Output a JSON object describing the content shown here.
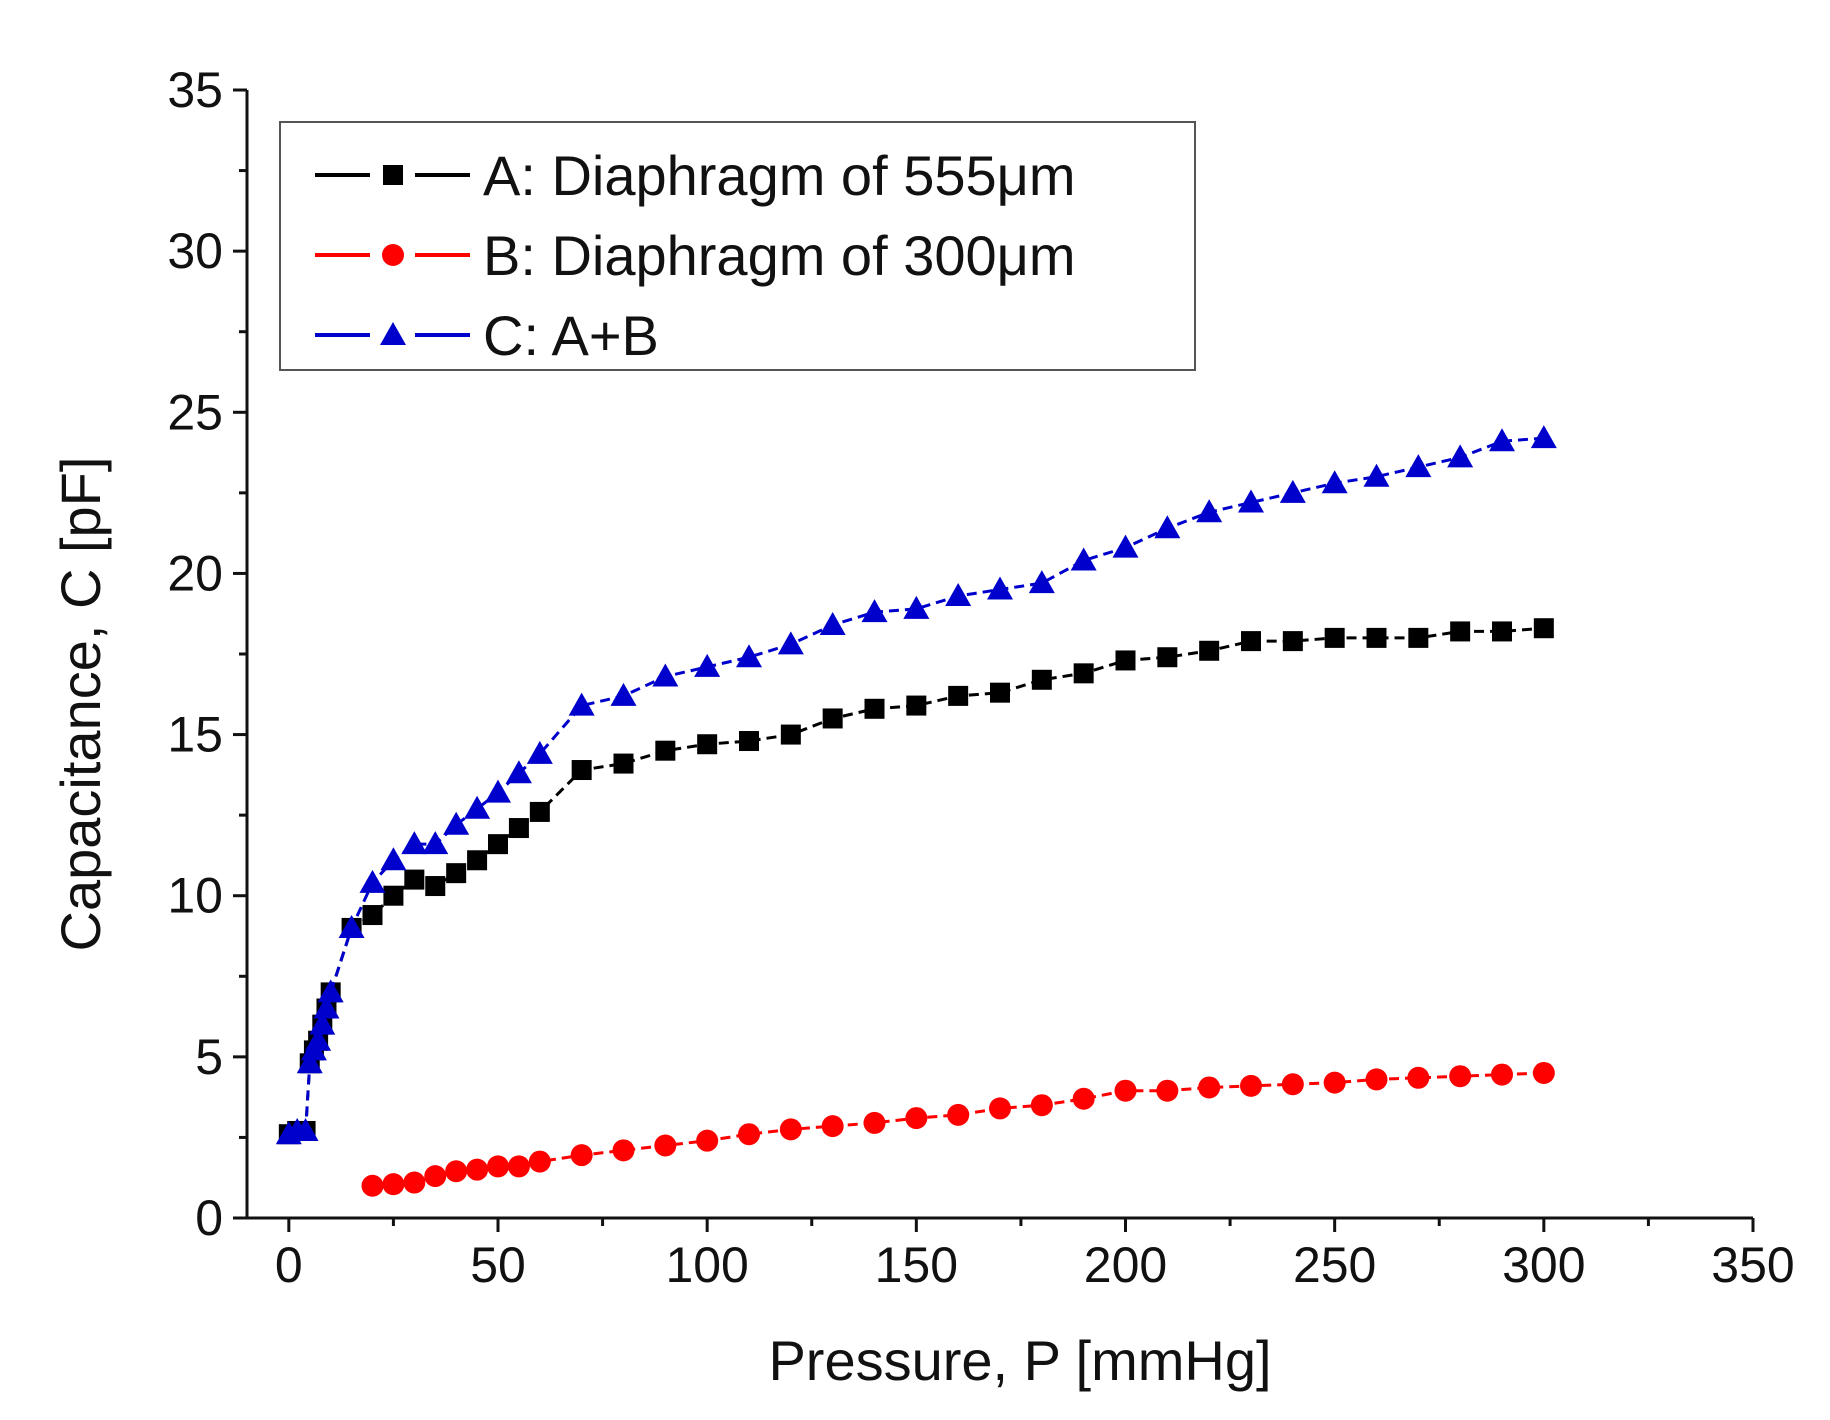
{
  "chart_data": {
    "type": "line",
    "title": "",
    "xlabel": "Pressure, P [mmHg]",
    "ylabel": "Capacitance, C [pF]",
    "xlim": [
      -10,
      350
    ],
    "ylim": [
      0,
      35
    ],
    "xticks": [
      0,
      50,
      100,
      150,
      200,
      250,
      300,
      350
    ],
    "yticks": [
      0,
      5,
      10,
      15,
      20,
      25,
      30,
      35
    ],
    "grid": false,
    "legend_position": "top-left",
    "series": [
      {
        "name": "A: Diaphragm of 555μm",
        "color": "#000000",
        "marker": "square",
        "x": [
          0,
          2,
          4,
          5,
          6,
          7,
          8,
          9,
          10,
          15,
          20,
          25,
          30,
          35,
          40,
          45,
          50,
          55,
          60,
          70,
          80,
          90,
          100,
          110,
          120,
          130,
          140,
          150,
          160,
          170,
          180,
          190,
          200,
          210,
          220,
          230,
          240,
          250,
          260,
          270,
          280,
          290,
          300
        ],
        "y": [
          2.6,
          2.7,
          2.7,
          4.8,
          5.2,
          5.5,
          6.0,
          6.5,
          7.0,
          9.0,
          9.4,
          10.0,
          10.5,
          10.3,
          10.7,
          11.1,
          11.6,
          12.1,
          12.6,
          13.9,
          14.1,
          14.5,
          14.7,
          14.8,
          15.0,
          15.5,
          15.8,
          15.9,
          16.2,
          16.3,
          16.7,
          16.9,
          17.3,
          17.4,
          17.6,
          17.9,
          17.9,
          18.0,
          18.0,
          18.0,
          18.2,
          18.2,
          18.3
        ]
      },
      {
        "name": "B: Diaphragm of 300μm",
        "color": "#ff0000",
        "marker": "circle",
        "x": [
          20,
          25,
          30,
          35,
          40,
          45,
          50,
          55,
          60,
          70,
          80,
          90,
          100,
          110,
          120,
          130,
          140,
          150,
          160,
          170,
          180,
          190,
          200,
          210,
          220,
          230,
          240,
          250,
          260,
          270,
          280,
          290,
          300
        ],
        "y": [
          1.0,
          1.05,
          1.1,
          1.3,
          1.45,
          1.5,
          1.6,
          1.6,
          1.75,
          1.95,
          2.1,
          2.25,
          2.4,
          2.6,
          2.75,
          2.85,
          2.95,
          3.1,
          3.2,
          3.4,
          3.5,
          3.7,
          3.95,
          3.95,
          4.05,
          4.1,
          4.15,
          4.2,
          4.3,
          4.35,
          4.4,
          4.45,
          4.5
        ]
      },
      {
        "name": "C: A+B",
        "color": "#0000cc",
        "marker": "triangle",
        "x": [
          0,
          2,
          4,
          5,
          6,
          7,
          8,
          9,
          10,
          15,
          20,
          25,
          30,
          35,
          40,
          45,
          50,
          55,
          60,
          70,
          80,
          90,
          100,
          110,
          120,
          130,
          140,
          150,
          160,
          170,
          180,
          190,
          200,
          210,
          220,
          230,
          240,
          250,
          260,
          270,
          280,
          290,
          300
        ],
        "y": [
          2.6,
          2.7,
          2.7,
          4.8,
          5.2,
          5.5,
          6.0,
          6.5,
          7.0,
          9.0,
          10.4,
          11.1,
          11.6,
          11.6,
          12.2,
          12.7,
          13.2,
          13.8,
          14.4,
          15.9,
          16.2,
          16.8,
          17.1,
          17.4,
          17.8,
          18.4,
          18.8,
          18.9,
          19.3,
          19.5,
          19.7,
          20.4,
          20.8,
          21.4,
          21.9,
          22.2,
          22.5,
          22.8,
          23.0,
          23.3,
          23.6,
          24.1,
          24.2
        ]
      }
    ]
  }
}
